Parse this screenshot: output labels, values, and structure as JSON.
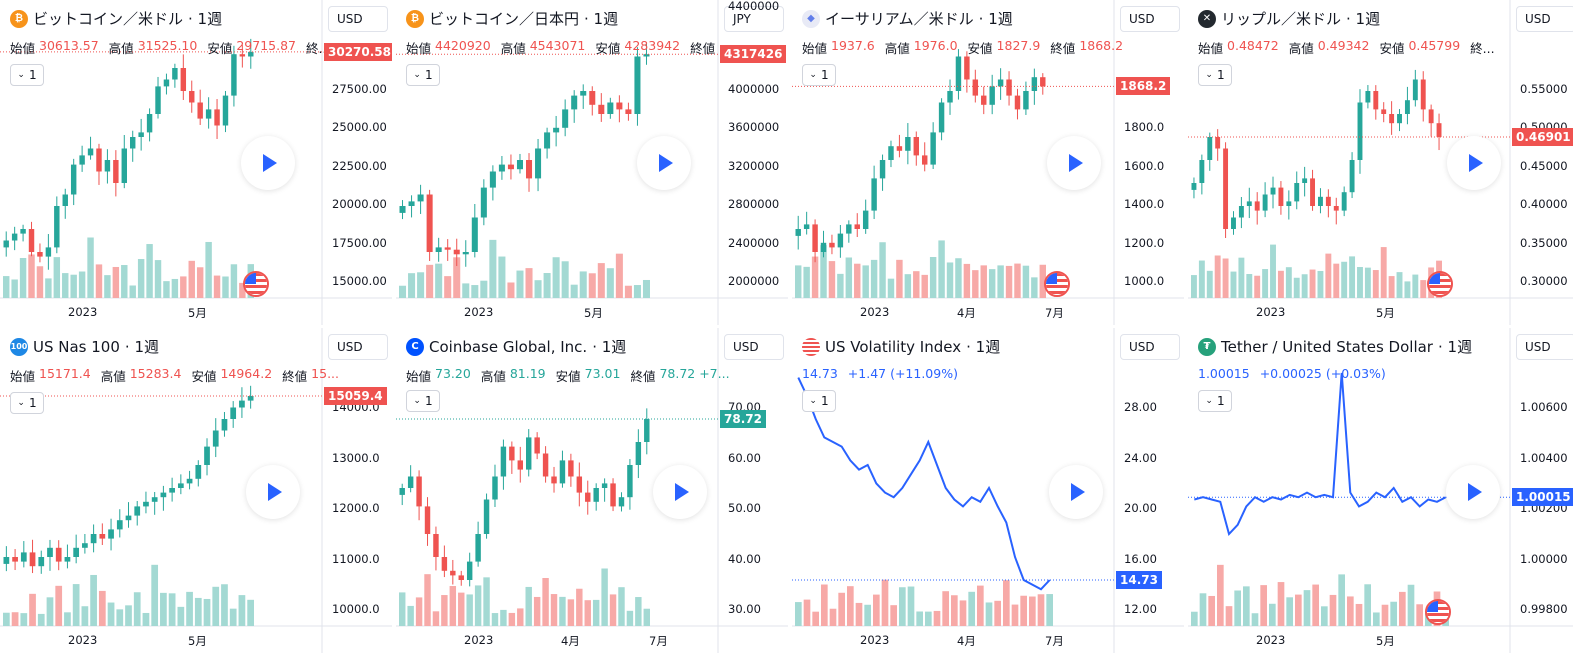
{
  "colors": {
    "up": "#26a69a",
    "down": "#ef5350",
    "up_volume": "#a3d9d3",
    "down_volume": "#f7a9a7",
    "line": "#2962ff",
    "grid": "#eceef2",
    "play": "#2962ff"
  },
  "panels": [
    {
      "id": "btcusd",
      "title": "ビットコイン／米ドル",
      "interval": "· 1週",
      "icon": "bitcoin-icon",
      "icon_color": "#f7931a",
      "icon_glyph": "₿",
      "currency": "USD",
      "ohlc_class": "down",
      "ohlc": [
        [
          "始値",
          "30613.57"
        ],
        [
          "高値",
          "31525.10"
        ],
        [
          "安値",
          "29715.87"
        ],
        [
          "終...",
          ""
        ]
      ],
      "interval_value": "1",
      "price_axis": [
        "27500.00",
        "25000.00",
        "22500.00",
        "20000.00",
        "17500.00",
        "15000.00"
      ],
      "price_axis_top": "",
      "last_price": "30270.58",
      "last_color": "#ef5350",
      "time_axis": [
        "2023",
        "5月"
      ],
      "chart_type": "candle",
      "flag": true
    },
    {
      "id": "btcjpy",
      "title": "ビットコイン／日本円",
      "interval": "· 1週",
      "icon": "bitcoin-icon",
      "icon_color": "#f7931a",
      "icon_glyph": "₿",
      "currency": "JPY",
      "ohlc_class": "down",
      "ohlc": [
        [
          "始値",
          "4420920"
        ],
        [
          "高値",
          "4543071"
        ],
        [
          "安値",
          "4283942"
        ],
        [
          "終値",
          ""
        ]
      ],
      "interval_value": "1",
      "price_axis": [
        "4000000",
        "3600000",
        "3200000",
        "2800000",
        "2400000",
        "2000000"
      ],
      "price_axis_top": "4400000",
      "last_price": "4317426",
      "last_color": "#ef5350",
      "time_axis": [
        "2023",
        "5月"
      ],
      "chart_type": "candle",
      "flag": false
    },
    {
      "id": "ethusd",
      "title": "イーサリアム／米ドル",
      "interval": "· 1週",
      "icon": "ethereum-icon",
      "icon_color": "#e8eaf6",
      "icon_glyph": "◆",
      "currency": "USD",
      "ohlc_class": "down",
      "ohlc": [
        [
          "始値",
          "1937.6"
        ],
        [
          "高値",
          "1976.0"
        ],
        [
          "安値",
          "1827.9"
        ],
        [
          "終値",
          "1868.2"
        ]
      ],
      "interval_value": "1",
      "price_axis": [
        "2000.0",
        "1800.0",
        "1600.0",
        "1400.0",
        "1200.0",
        "1000.0"
      ],
      "price_axis_top": "",
      "last_price": "1868.2",
      "last_color": "#ef5350",
      "time_axis": [
        "2023",
        "4月",
        "7月"
      ],
      "chart_type": "candle",
      "flag": true
    },
    {
      "id": "xrpusd",
      "title": "リップル／米ドル",
      "interval": "· 1週",
      "icon": "ripple-icon",
      "icon_color": "#23292f",
      "icon_glyph": "✕",
      "currency": "USD",
      "ohlc_class": "down",
      "ohlc": [
        [
          "始値",
          "0.48472"
        ],
        [
          "高値",
          "0.49342"
        ],
        [
          "安値",
          "0.45799"
        ],
        [
          "終...",
          ""
        ]
      ],
      "interval_value": "1",
      "price_axis": [
        "0.55000",
        "0.50000",
        "0.45000",
        "0.40000",
        "0.35000",
        "0.30000"
      ],
      "price_axis_top": "",
      "last_price": "0.46901",
      "last_color": "#ef5350",
      "time_axis": [
        "2023",
        "5月"
      ],
      "chart_type": "candle",
      "flag": true
    },
    {
      "id": "nas100",
      "title": "US Nas 100",
      "interval": "· 1週",
      "icon": "nas100-icon",
      "icon_color": "#1e88e5",
      "icon_glyph": "100",
      "currency": "USD",
      "ohlc_class": "down",
      "ohlc": [
        [
          "始値",
          "15171.4"
        ],
        [
          "高値",
          "15283.4"
        ],
        [
          "安値",
          "14964.2"
        ],
        [
          "終値",
          "15..."
        ]
      ],
      "interval_value": "1",
      "price_axis": [
        "14000.0",
        "13000.0",
        "12000.0",
        "11000.0",
        "10000.0"
      ],
      "price_axis_top": "",
      "last_price": "15059.4",
      "last_color": "#ef5350",
      "time_axis": [
        "2023",
        "5月"
      ],
      "chart_type": "candle",
      "flag": false
    },
    {
      "id": "coin",
      "title": "Coinbase Global, Inc.",
      "interval": "· 1週",
      "icon": "coinbase-icon",
      "icon_color": "#0052ff",
      "icon_glyph": "C",
      "currency": "USD",
      "ohlc_class": "up",
      "ohlc": [
        [
          "始値",
          "73.20"
        ],
        [
          "高値",
          "81.19"
        ],
        [
          "安値",
          "73.01"
        ],
        [
          "終値",
          "78.72 +7..."
        ]
      ],
      "interval_value": "1",
      "price_axis": [
        "70.00",
        "60.00",
        "50.00",
        "40.00",
        "30.00"
      ],
      "price_axis_top": "",
      "last_price": "78.72",
      "last_color": "#26a69a",
      "time_axis": [
        "2023",
        "4月",
        "7月"
      ],
      "chart_type": "candle",
      "flag": false
    },
    {
      "id": "vix",
      "title": "US Volatility Index",
      "interval": "· 1週",
      "icon": "us-flag-icon",
      "icon_color": "#ef5350",
      "icon_glyph": "",
      "currency": "USD",
      "ohlc_class": "blue",
      "ohlc": [
        [
          "",
          "14.73"
        ],
        [
          "",
          "+1.47 (+11.09%)"
        ]
      ],
      "interval_value": "1",
      "price_axis": [
        "28.00",
        "24.00",
        "20.00",
        "16.00",
        "12.00"
      ],
      "price_axis_top": "",
      "last_price": "14.73",
      "last_color": "#2962ff",
      "time_axis": [
        "2023",
        "4月",
        "7月"
      ],
      "chart_type": "line",
      "flag": false
    },
    {
      "id": "usdt",
      "title": "Tether / United States Dollar",
      "interval": "· 1週",
      "icon": "tether-icon",
      "icon_color": "#26a17b",
      "icon_glyph": "₮",
      "currency": "USD",
      "ohlc_class": "blue",
      "ohlc": [
        [
          "",
          "1.00015"
        ],
        [
          "",
          "+0.00025 (+0.03%)"
        ]
      ],
      "interval_value": "1",
      "price_axis": [
        "1.00600",
        "1.00400",
        "1.00200",
        "1.00000",
        "0.99800"
      ],
      "price_axis_top": "",
      "last_price": "1.00015",
      "last_color": "#2962ff",
      "time_axis": [
        "2023",
        "5月"
      ],
      "chart_type": "line",
      "flag": true
    }
  ]
}
